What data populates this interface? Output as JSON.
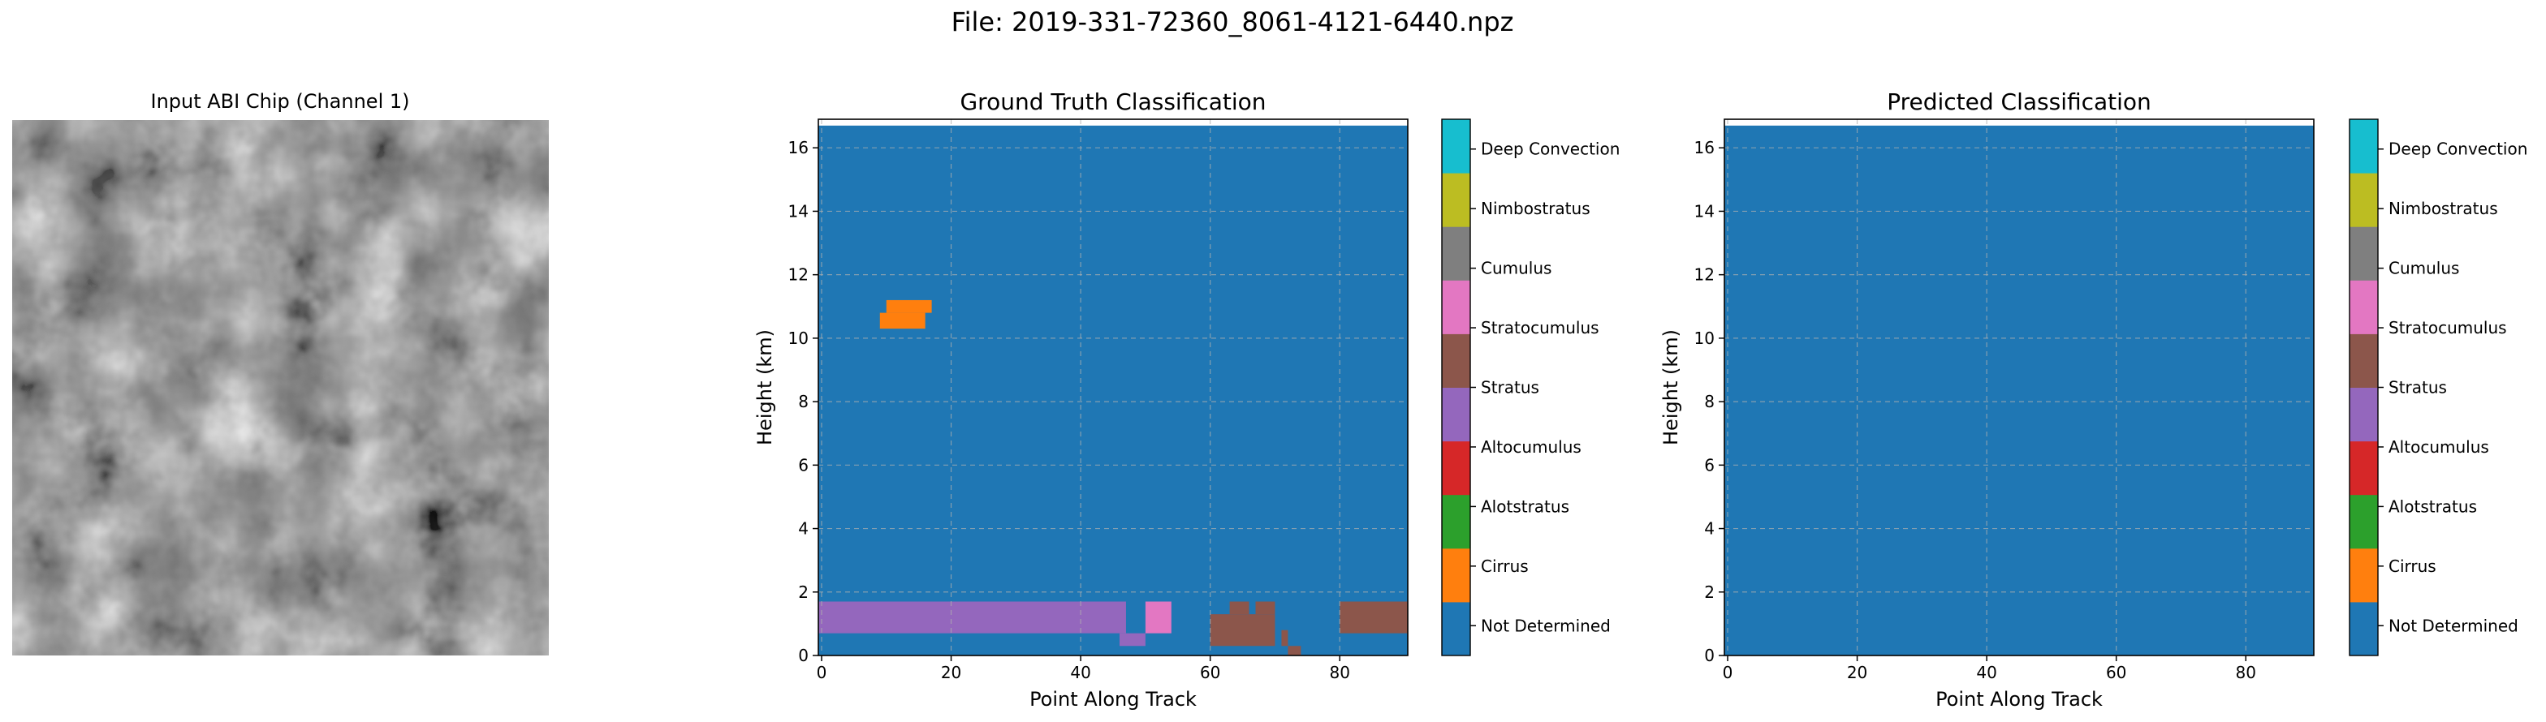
{
  "suptitle": "File: 2019-331-72360_8061-4121-6440.npz",
  "image_panel": {
    "title": "Input ABI Chip (Channel 1)"
  },
  "classes": [
    "Not Determined",
    "Cirrus",
    "Alotstratus",
    "Altocumulus",
    "Stratus",
    "Stratocumulus",
    "Cumulus",
    "Nimbostratus",
    "Deep Convection"
  ],
  "class_colors": [
    "#1f77b4",
    "#ff7f0e",
    "#2ca02c",
    "#d62728",
    "#9467bd",
    "#8c564b",
    "#e377c2",
    "#7f7f7f",
    "#bcbd22",
    "#17becf"
  ],
  "chart_data": [
    {
      "type": "heatmap",
      "title": "Ground Truth Classification",
      "xlabel": "Point Along Track",
      "ylabel": "Height (km)",
      "xlim": [
        -0.5,
        90.5
      ],
      "ylim": [
        0,
        16.9
      ],
      "xticks": [
        0,
        20,
        40,
        60,
        80
      ],
      "yticks": [
        0,
        2,
        4,
        6,
        8,
        10,
        12,
        14,
        16
      ],
      "grid": true,
      "background_class": "Not Determined",
      "data_top_km": 16.7,
      "regions": [
        {
          "class": "Cirrus",
          "x": [
            10,
            17
          ],
          "y": [
            10.8,
            11.2
          ]
        },
        {
          "class": "Cirrus",
          "x": [
            9,
            16
          ],
          "y": [
            10.3,
            10.8
          ]
        },
        {
          "class": "Stratus",
          "x": [
            -0.5,
            47
          ],
          "y": [
            0.7,
            1.7
          ]
        },
        {
          "class": "Stratus",
          "x": [
            46,
            50
          ],
          "y": [
            0.3,
            0.7
          ]
        },
        {
          "class": "Cumulus",
          "x": [
            50,
            54
          ],
          "y": [
            0.7,
            1.7
          ]
        },
        {
          "class": "Stratocumulus",
          "x": [
            60,
            70
          ],
          "y": [
            0.3,
            1.3
          ]
        },
        {
          "class": "Stratocumulus",
          "x": [
            63,
            66
          ],
          "y": [
            1.3,
            1.7
          ]
        },
        {
          "class": "Stratocumulus",
          "x": [
            67,
            70
          ],
          "y": [
            1.3,
            1.7
          ]
        },
        {
          "class": "Stratocumulus",
          "x": [
            71,
            72
          ],
          "y": [
            0.3,
            0.8
          ]
        },
        {
          "class": "Stratocumulus",
          "x": [
            72,
            74
          ],
          "y": [
            0.0,
            0.3
          ]
        },
        {
          "class": "Stratocumulus",
          "x": [
            80,
            90.5
          ],
          "y": [
            0.7,
            1.7
          ]
        }
      ]
    },
    {
      "type": "heatmap",
      "title": "Predicted Classification",
      "xlabel": "Point Along Track",
      "ylabel": "Height (km)",
      "xlim": [
        -0.5,
        90.5
      ],
      "ylim": [
        0,
        16.9
      ],
      "xticks": [
        0,
        20,
        40,
        60,
        80
      ],
      "yticks": [
        0,
        2,
        4,
        6,
        8,
        10,
        12,
        14,
        16
      ],
      "grid": true,
      "background_class": "Not Determined",
      "data_top_km": 16.7,
      "regions": []
    }
  ]
}
